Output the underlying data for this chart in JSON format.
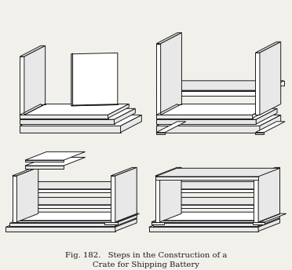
{
  "title_line1": "Fig. 182.   Steps in the Construction of a",
  "title_line2": "Crate for Shipping Battery",
  "bg_color": "#f2f0eb",
  "line_color": "#1a1a1a",
  "figsize": [
    3.72,
    3.44
  ],
  "dpi": 100
}
